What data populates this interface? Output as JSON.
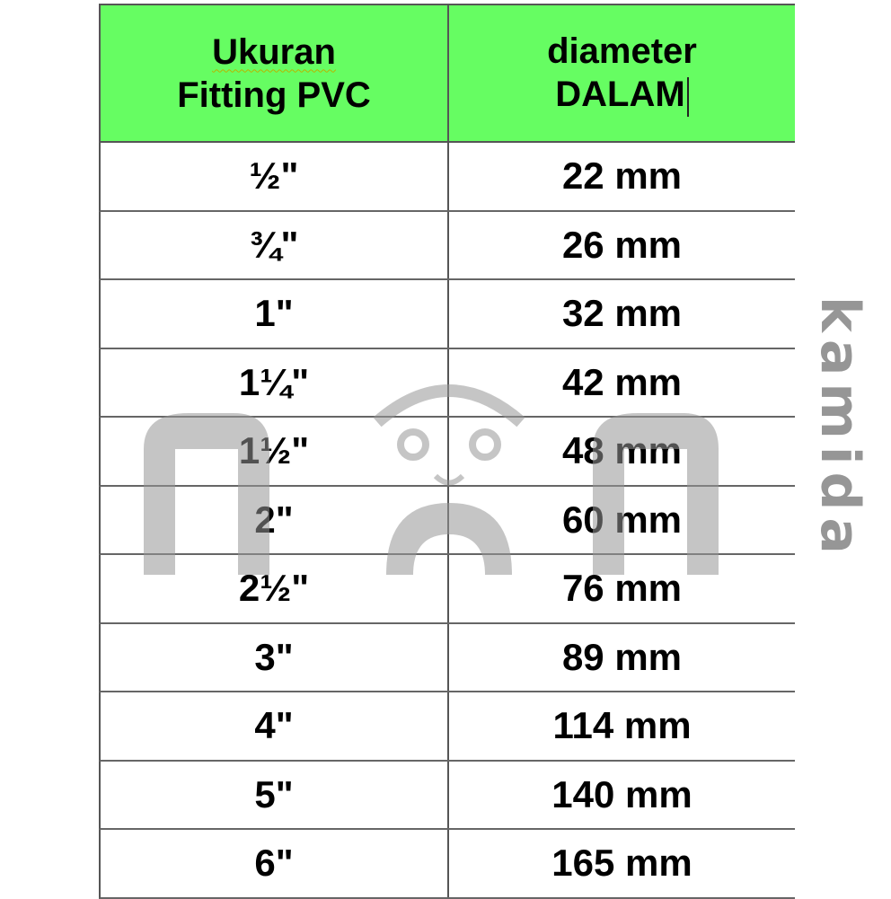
{
  "header": {
    "col1_line1": "Ukuran",
    "col1_line2": "Fitting PVC",
    "col2_line1": "diameter",
    "col2_line2": "DALAM"
  },
  "rows": [
    {
      "size": "½\"",
      "diameter": "22 mm"
    },
    {
      "size": "¾\"",
      "diameter": "26 mm"
    },
    {
      "size": "1\"",
      "diameter": "32 mm"
    },
    {
      "size": "1¼\"",
      "diameter": "42 mm"
    },
    {
      "size": "1½\"",
      "diameter": "48 mm"
    },
    {
      "size": "2\"",
      "diameter": "60 mm"
    },
    {
      "size": "2½\"",
      "diameter": "76 mm"
    },
    {
      "size": "3\"",
      "diameter": "89 mm"
    },
    {
      "size": "4\"",
      "diameter": "114 mm"
    },
    {
      "size": "5\"",
      "diameter": "140 mm"
    },
    {
      "size": "6\"",
      "diameter": "165 mm"
    }
  ],
  "watermark": {
    "text": "kamida",
    "icon": "panda-logo-icon"
  },
  "colors": {
    "header_bg": "#66fd62",
    "watermark": "#969696"
  }
}
